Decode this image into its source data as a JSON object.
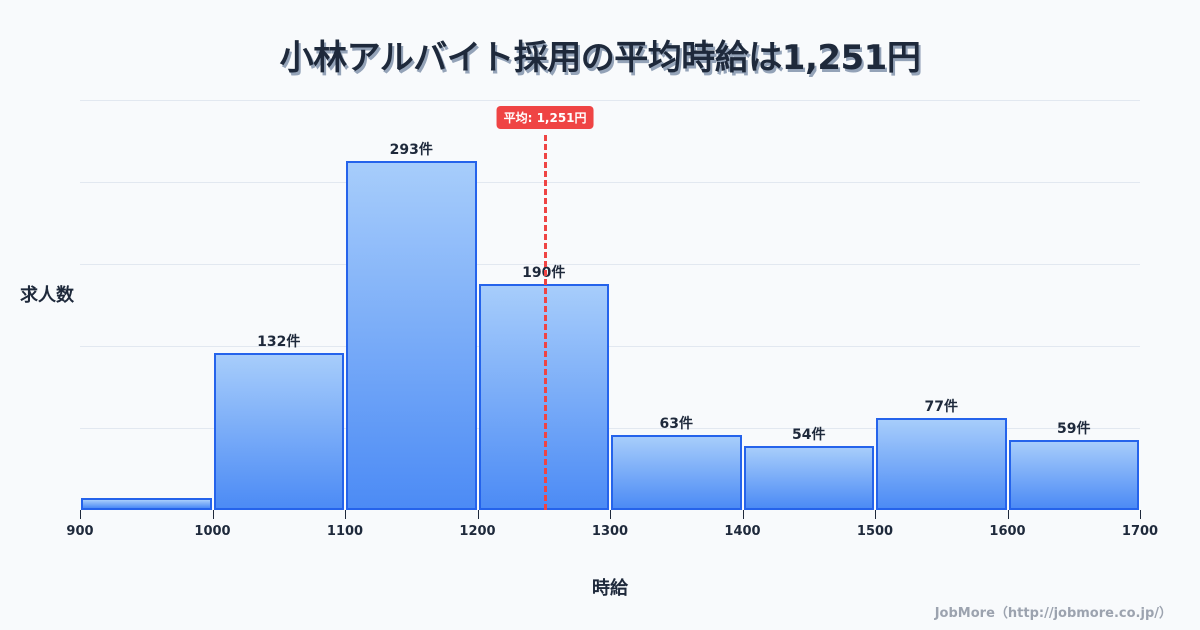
{
  "title": "小林アルバイト採用の平均時給は1,251円",
  "axes": {
    "xlabel": "時給",
    "ylabel": "求人数"
  },
  "mean": {
    "value": 1251,
    "label": "平均: 1,251円",
    "color": "#ef4444"
  },
  "ticks": [
    "900",
    "1000",
    "1100",
    "1200",
    "1300",
    "1400",
    "1500",
    "1600",
    "1700"
  ],
  "bars": [
    {
      "range": "900-1000",
      "count": 10,
      "label": ""
    },
    {
      "range": "1000-1100",
      "count": 132,
      "label": "132件"
    },
    {
      "range": "1100-1200",
      "count": 293,
      "label": "293件"
    },
    {
      "range": "1200-1300",
      "count": 190,
      "label": "190件"
    },
    {
      "range": "1300-1400",
      "count": 63,
      "label": "63件"
    },
    {
      "range": "1400-1500",
      "count": 54,
      "label": "54件"
    },
    {
      "range": "1500-1600",
      "count": 77,
      "label": "77件"
    },
    {
      "range": "1600-1700",
      "count": 59,
      "label": "59件"
    }
  ],
  "credit": "JobMore（http://jobmore.co.jp/）",
  "colors": {
    "bar_top": "#a7cdfb",
    "bar_bottom": "#4c8bf5",
    "bar_border": "#2563eb",
    "mean_line": "#ef4444",
    "text": "#1e293b",
    "background": "#f8fafc"
  },
  "chart_data": {
    "type": "bar",
    "title": "小林アルバイト採用の平均時給は1,251円",
    "xlabel": "時給",
    "ylabel": "求人数",
    "categories": [
      "900-1000",
      "1000-1100",
      "1100-1200",
      "1200-1300",
      "1300-1400",
      "1400-1500",
      "1500-1600",
      "1600-1700"
    ],
    "values": [
      10,
      132,
      293,
      190,
      63,
      54,
      77,
      59
    ],
    "x_ticks": [
      900,
      1000,
      1100,
      1200,
      1300,
      1400,
      1500,
      1600,
      1700
    ],
    "xlim": [
      900,
      1700
    ],
    "ylim": [
      0,
      345
    ],
    "grid": true,
    "annotations": [
      {
        "type": "vline",
        "x": 1251,
        "label": "平均: 1,251円",
        "style": "dashed",
        "color": "#ef4444"
      }
    ],
    "data_label_suffix": "件"
  }
}
